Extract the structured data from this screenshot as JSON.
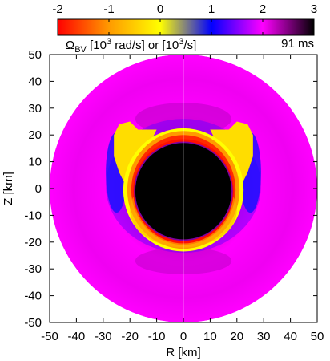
{
  "chart_data": {
    "type": "heatmap",
    "title": "",
    "colorbar": {
      "range": [
        -2,
        3
      ],
      "ticks": [
        -2,
        -1,
        0,
        1,
        2,
        3
      ],
      "tick_labels": [
        "-2",
        "-1",
        "0",
        "1",
        "2",
        "3"
      ],
      "label_prefix": "Ω",
      "label_sub": "BV",
      "label_part1": " [10",
      "label_sup1": "3",
      "label_part2": " rad/s] or  [10",
      "label_sup2": "3",
      "label_part3": "/s]",
      "stops": [
        {
          "value": -2.0,
          "color": "#ff0000"
        },
        {
          "value": -1.0,
          "color": "#ff9a00"
        },
        {
          "value": 0.0,
          "color": "#ffff00"
        },
        {
          "value": 1.0,
          "color": "#0000ff"
        },
        {
          "value": 2.0,
          "color": "#ff00ff"
        },
        {
          "value": 3.0,
          "color": "#000000"
        }
      ]
    },
    "time_label": "91 ms",
    "xlabel": "R [km]",
    "ylabel": "Z [km]",
    "xlim": [
      -50,
      50
    ],
    "ylim": [
      -50,
      50
    ],
    "xticks": [
      -50,
      -40,
      -30,
      -20,
      -10,
      0,
      10,
      20,
      30,
      40,
      50
    ],
    "yticks": [
      -50,
      -40,
      -30,
      -20,
      -10,
      0,
      10,
      20,
      30,
      40,
      50
    ],
    "grid": false,
    "regions": [
      {
        "name": "outer",
        "radius_km": 50,
        "value": 2.1,
        "color": "#ff00ff"
      },
      {
        "name": "outer-shell-band",
        "radius_km": 25,
        "value": 2.3,
        "color": "#d400d0"
      },
      {
        "name": "plume-arc",
        "radius_km": 24,
        "value": 0.0,
        "color": "#ffd000"
      },
      {
        "name": "ring-yellow",
        "radius_km": 22,
        "value": 0.0,
        "color": "#ffff00"
      },
      {
        "name": "ring-orange",
        "radius_km": 20.5,
        "value": -1.0,
        "color": "#ff9a00"
      },
      {
        "name": "ring-red",
        "radius_km": 19,
        "value": -2.0,
        "color": "#ff2000"
      },
      {
        "name": "core",
        "radius_km": 18,
        "value": 3.0,
        "color": "#000000"
      }
    ],
    "colors": {
      "outer": "#ff00ff",
      "core": "#000000",
      "edge": "#0000ff"
    }
  }
}
